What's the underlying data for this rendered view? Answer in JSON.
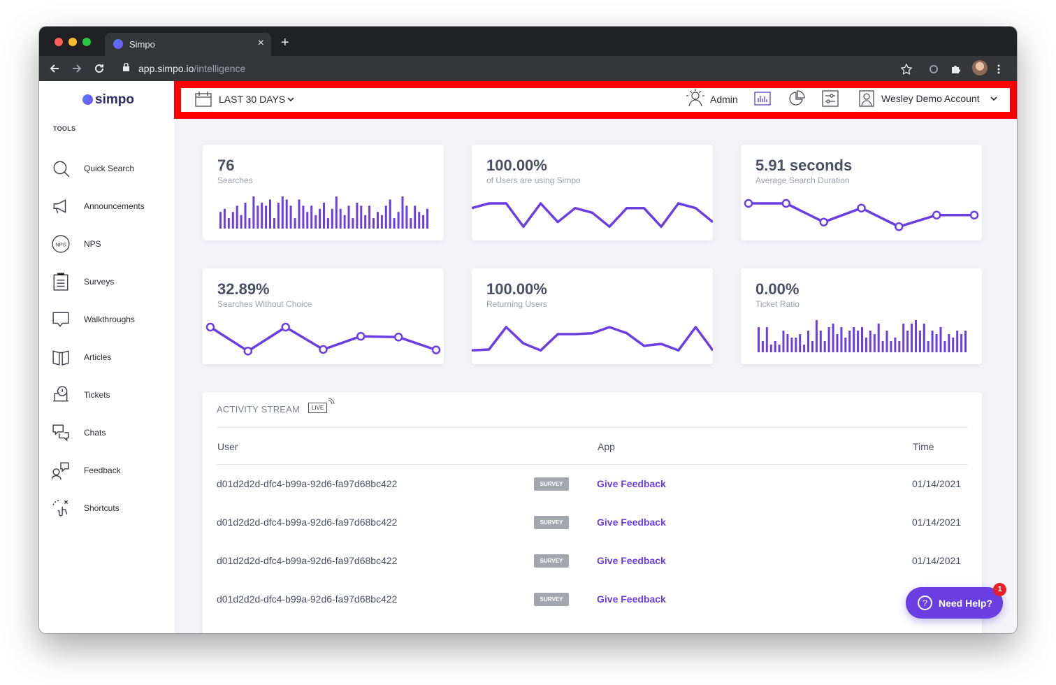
{
  "browser": {
    "tab_title": "Simpo",
    "tab_close": "×",
    "new_tab": "+",
    "url_host": "app.simpo.io",
    "url_path": "/intelligence"
  },
  "sidebar": {
    "brand": "simpo",
    "section_label": "TOOLS",
    "items": [
      {
        "label": "Quick Search",
        "icon": "search-icon"
      },
      {
        "label": "Announcements",
        "icon": "megaphone-icon"
      },
      {
        "label": "NPS",
        "icon": "nps-icon"
      },
      {
        "label": "Surveys",
        "icon": "clipboard-icon"
      },
      {
        "label": "Walkthroughs",
        "icon": "speech-bubble-icon"
      },
      {
        "label": "Articles",
        "icon": "book-icon"
      },
      {
        "label": "Tickets",
        "icon": "ticket-icon"
      },
      {
        "label": "Chats",
        "icon": "chat-icon"
      },
      {
        "label": "Feedback",
        "icon": "feedback-icon"
      },
      {
        "label": "Shortcuts",
        "icon": "shortcut-icon"
      }
    ]
  },
  "topbar": {
    "date_range": "LAST 30 DAYS",
    "admin_label": "Admin",
    "account_label": "Wesley Demo Account"
  },
  "metrics": [
    {
      "value": "76",
      "label": "Searches",
      "chart": "bar",
      "series": [
        4,
        5,
        2,
        4,
        6,
        3,
        7,
        2,
        9,
        6,
        7,
        6,
        8,
        2,
        7,
        9,
        8,
        6,
        2,
        8,
        6,
        4,
        6,
        3,
        5,
        7,
        2,
        5,
        9,
        5,
        3,
        6,
        2,
        7,
        6,
        3,
        6,
        2,
        4,
        3,
        6,
        8,
        2,
        4,
        9,
        6,
        2,
        6,
        4,
        3,
        5
      ]
    },
    {
      "value": "100.00%",
      "label": "of Users are using Simpo",
      "chart": "line",
      "series": [
        5,
        6,
        6,
        1,
        6,
        2,
        5,
        4,
        1,
        5,
        5,
        1,
        6,
        5,
        2
      ]
    },
    {
      "value": "5.91 seconds",
      "label": "Average Search Duration",
      "chart": "line-dots",
      "series": [
        6,
        6,
        2,
        5,
        1,
        3.5,
        3.5
      ]
    },
    {
      "value": "32.89%",
      "label": "Searches Without Choice",
      "chart": "line-dots",
      "series": [
        7,
        1,
        7,
        1.4,
        4.7,
        4.5,
        1.3
      ]
    },
    {
      "value": "100.00%",
      "label": "Returning Users",
      "chart": "line",
      "series": [
        1,
        1.2,
        6,
        2.5,
        1,
        4.5,
        4.5,
        4.7,
        6,
        4.7,
        2,
        2.4,
        1,
        6,
        1
      ]
    },
    {
      "value": "0.00%",
      "label": "Ticket Ratio",
      "chart": "bar",
      "series": [
        6,
        2,
        6,
        1,
        2,
        1,
        5,
        4,
        3,
        3,
        4,
        1,
        5,
        2,
        8,
        5,
        2,
        6,
        7,
        4,
        6,
        3,
        5,
        6,
        5,
        6,
        3,
        5,
        4,
        7,
        2,
        5,
        2,
        3,
        2,
        7,
        5,
        7,
        8,
        5,
        7,
        2,
        5,
        4,
        6,
        2,
        4,
        3,
        5,
        4,
        5
      ]
    }
  ],
  "activity": {
    "title": "ACTIVITY STREAM",
    "live_badge": "LIVE",
    "columns": {
      "user": "User",
      "app": "App",
      "time": "Time"
    },
    "rows": [
      {
        "user": "d01d2d2d-dfc4-b99a-92d6-fa97d68bc422",
        "badge": "SURVEY",
        "app": "Give Feedback",
        "time": "01/14/2021"
      },
      {
        "user": "d01d2d2d-dfc4-b99a-92d6-fa97d68bc422",
        "badge": "SURVEY",
        "app": "Give Feedback",
        "time": "01/14/2021"
      },
      {
        "user": "d01d2d2d-dfc4-b99a-92d6-fa97d68bc422",
        "badge": "SURVEY",
        "app": "Give Feedback",
        "time": "01/14/2021"
      },
      {
        "user": "d01d2d2d-dfc4-b99a-92d6-fa97d68bc422",
        "badge": "SURVEY",
        "app": "Give Feedback",
        "time": ""
      }
    ]
  },
  "help": {
    "label": "Need Help?",
    "notification_count": "1",
    "icon": "question-icon"
  },
  "colors": {
    "accent": "#6a3ee0",
    "highlight": "#ff0000",
    "badge": "#a4a6ae"
  }
}
